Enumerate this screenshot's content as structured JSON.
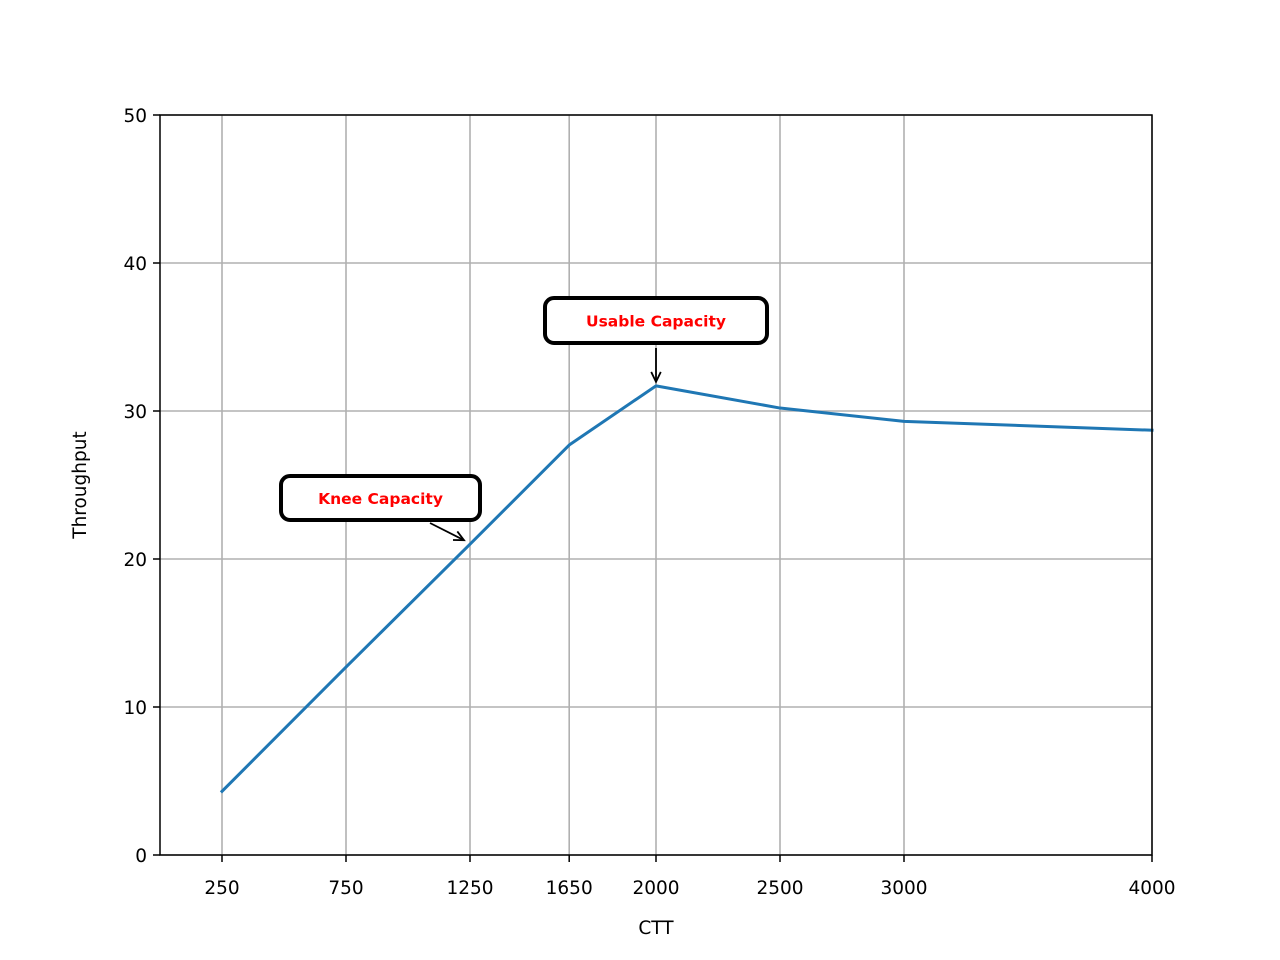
{
  "chart_data": {
    "type": "line",
    "title": "",
    "xlabel": "CTT",
    "ylabel": "Throughput",
    "x": [
      250,
      750,
      1250,
      1650,
      2000,
      2500,
      3000,
      4000
    ],
    "series": [
      {
        "values": [
          4.3,
          12.7,
          21.0,
          27.7,
          31.7,
          30.2,
          29.3,
          28.7
        ]
      }
    ],
    "xlim": [
      0,
      4000
    ],
    "ylim": [
      0,
      50
    ],
    "xticks": [
      250,
      750,
      1250,
      1650,
      2000,
      2500,
      3000,
      4000
    ],
    "yticks": [
      0,
      10,
      20,
      30,
      40,
      50
    ],
    "grid": true,
    "line_color": "#1f77b4",
    "annotations": [
      {
        "text": "Knee Capacity",
        "point": [
          1250,
          21.0
        ],
        "color": "#ff0000"
      },
      {
        "text": "Usable Capacity",
        "point": [
          2000,
          31.7
        ],
        "color": "#ff0000"
      }
    ]
  }
}
